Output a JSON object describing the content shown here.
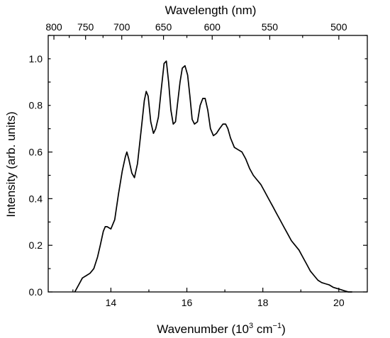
{
  "chart_data": {
    "type": "line",
    "xlabel": {
      "main": "Wavenumber (10",
      "sup1": "3",
      "mid": " cm",
      "sup2": "−1",
      "end": ")"
    },
    "ylabel": "Intensity (arb. units)",
    "top_axis_label": "Wavelength (nm)",
    "xlim": [
      12.35,
      20.75
    ],
    "ylim": [
      0.0,
      1.1
    ],
    "x_ticks": [
      14,
      16,
      18,
      20
    ],
    "x_tick_labels": [
      "14",
      "16",
      "18",
      "20"
    ],
    "y_ticks": [
      0.0,
      0.2,
      0.4,
      0.6,
      0.8,
      1.0
    ],
    "y_tick_labels": [
      "0.0",
      "0.2",
      "0.4",
      "0.6",
      "0.8",
      "1.0"
    ],
    "top_ticks_nm": [
      800,
      750,
      700,
      650,
      600,
      550,
      500
    ],
    "top_tick_labels": [
      "800",
      "750",
      "700",
      "650",
      "600",
      "550",
      "500"
    ],
    "grid": false,
    "line_color": "#000000",
    "series": [
      {
        "x": [
          13.05,
          13.15,
          13.25,
          13.35,
          13.45,
          13.55,
          13.65,
          13.72,
          13.8,
          13.85,
          13.9,
          14.0,
          14.1,
          14.2,
          14.3,
          14.38,
          14.42,
          14.47,
          14.55,
          14.62,
          14.7,
          14.8,
          14.88,
          14.93,
          14.98,
          15.05,
          15.12,
          15.18,
          15.25,
          15.32,
          15.4,
          15.46,
          15.52,
          15.58,
          15.64,
          15.7,
          15.75,
          15.82,
          15.88,
          15.95,
          16.02,
          16.08,
          16.14,
          16.2,
          16.28,
          16.35,
          16.42,
          16.48,
          16.55,
          16.62,
          16.7,
          16.78,
          16.86,
          16.95,
          17.02,
          17.08,
          17.15,
          17.25,
          17.35,
          17.45,
          17.55,
          17.65,
          17.75,
          17.85,
          17.95,
          18.05,
          18.15,
          18.25,
          18.35,
          18.45,
          18.55,
          18.65,
          18.75,
          18.85,
          18.95,
          19.05,
          19.15,
          19.25,
          19.35,
          19.45,
          19.55,
          19.65,
          19.75,
          19.85,
          19.95,
          20.05,
          20.15,
          20.25,
          20.35
        ],
        "y": [
          0.0,
          0.03,
          0.06,
          0.07,
          0.08,
          0.1,
          0.15,
          0.2,
          0.26,
          0.28,
          0.28,
          0.27,
          0.31,
          0.42,
          0.52,
          0.58,
          0.6,
          0.57,
          0.51,
          0.49,
          0.55,
          0.7,
          0.82,
          0.86,
          0.84,
          0.73,
          0.68,
          0.7,
          0.75,
          0.86,
          0.98,
          0.99,
          0.9,
          0.78,
          0.72,
          0.73,
          0.8,
          0.9,
          0.96,
          0.97,
          0.93,
          0.84,
          0.74,
          0.72,
          0.73,
          0.8,
          0.83,
          0.83,
          0.78,
          0.7,
          0.67,
          0.68,
          0.7,
          0.72,
          0.72,
          0.7,
          0.66,
          0.62,
          0.61,
          0.6,
          0.57,
          0.53,
          0.5,
          0.48,
          0.46,
          0.43,
          0.4,
          0.37,
          0.34,
          0.31,
          0.28,
          0.25,
          0.22,
          0.2,
          0.18,
          0.15,
          0.12,
          0.09,
          0.07,
          0.05,
          0.04,
          0.035,
          0.03,
          0.02,
          0.015,
          0.01,
          0.005,
          0.0,
          0.0
        ]
      }
    ]
  }
}
